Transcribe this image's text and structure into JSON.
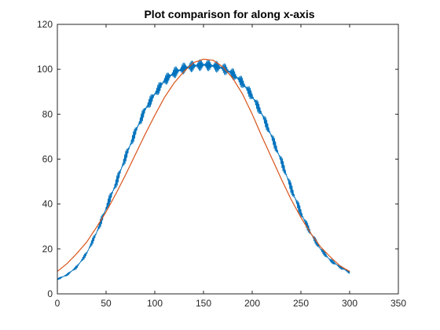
{
  "chart_data": {
    "type": "line",
    "title": "Plot comparison for along x-axis",
    "xlabel": "",
    "ylabel": "",
    "xlim": [
      0,
      350
    ],
    "ylim": [
      0,
      120
    ],
    "xticks": [
      0,
      50,
      100,
      150,
      200,
      250,
      300,
      350
    ],
    "yticks": [
      0,
      20,
      40,
      60,
      80,
      100,
      120
    ],
    "grid": false,
    "legend": "none",
    "series": [
      {
        "color": "#0072BD",
        "x": [
          0,
          10,
          20,
          30,
          40,
          50,
          60,
          70,
          80,
          90,
          100,
          110,
          120,
          130,
          140,
          150,
          160,
          170,
          180,
          190,
          200,
          210,
          220,
          230,
          240,
          250,
          260,
          270,
          280,
          290,
          300
        ],
        "y": [
          6.5,
          8.5,
          12,
          18,
          27,
          38,
          49,
          61,
          72,
          82,
          89,
          95,
          98.5,
          100.5,
          101.5,
          102,
          101.5,
          100.5,
          98,
          94,
          88,
          80,
          70,
          59,
          47,
          36,
          27,
          20,
          15,
          12,
          9.5
        ],
        "noise_amplitude": 2.5
      },
      {
        "color": "#D95319",
        "x": [
          0,
          10,
          20,
          30,
          40,
          50,
          60,
          70,
          80,
          90,
          100,
          110,
          120,
          130,
          140,
          150,
          160,
          170,
          180,
          190,
          200,
          210,
          220,
          230,
          240,
          250,
          260,
          270,
          280,
          290,
          300
        ],
        "y": [
          10,
          13.5,
          18,
          23,
          29.5,
          36.5,
          44.5,
          53,
          62,
          71,
          79.5,
          87.5,
          94,
          99,
          103,
          104.5,
          104,
          101,
          96,
          89,
          80,
          70,
          60.5,
          51,
          42,
          34,
          27,
          21,
          16.5,
          12.5,
          10
        ]
      }
    ]
  }
}
